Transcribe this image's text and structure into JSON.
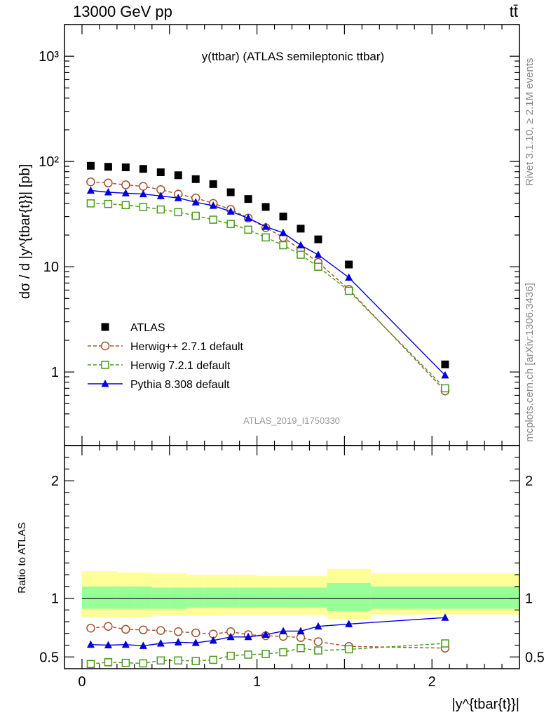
{
  "header": {
    "energy_label": "13000 GeV pp",
    "process_label": "tt̄"
  },
  "side_labels": {
    "rivet": "Rivet 3.1.10, ≥ 2.1M events",
    "mcplots": "mcplots.cern.ch [arXiv:1306.3436]"
  },
  "chart_data": [
    {
      "type": "scatter",
      "title": "y(ttbar) (ATLAS semileptonic ttbar)",
      "ylabel": "dσ / d |y^{tbar{t}}| [pb]",
      "xlabel": "",
      "yscale": "log",
      "ylim": [
        0.2,
        2000
      ],
      "xlim": [
        -0.1,
        2.5
      ],
      "y_tick_labels": [
        "1",
        "10",
        "10²",
        "10³"
      ],
      "watermark": "ATLAS_2019_I1750330",
      "legend_position": "lower-left",
      "x": [
        0.05,
        0.15,
        0.25,
        0.35,
        0.45,
        0.55,
        0.65,
        0.75,
        0.85,
        0.95,
        1.05,
        1.15,
        1.25,
        1.35,
        1.525,
        2.075
      ],
      "series": [
        {
          "name": "ATLAS",
          "style": "data",
          "color": "#000000",
          "marker": "square-filled",
          "values": [
            91,
            89,
            88,
            85,
            79,
            74,
            68,
            61,
            51,
            44,
            37,
            30,
            23,
            18.2,
            10.5,
            1.18
          ]
        },
        {
          "name": "Herwig++ 2.7.1 default",
          "style": "dashed",
          "color": "#a0522d",
          "marker": "circle-open",
          "values": [
            64,
            62.5,
            60,
            58,
            54,
            49,
            45,
            40,
            35,
            29,
            23.5,
            19,
            14.5,
            11,
            6.1,
            0.66
          ]
        },
        {
          "name": "Herwig 7.2.1 default",
          "style": "dashed",
          "color": "#4a9a1a",
          "marker": "square-open",
          "values": [
            40,
            39.5,
            38.5,
            37,
            35,
            33,
            30.5,
            28,
            25.5,
            22.5,
            19,
            16,
            13,
            10,
            5.9,
            0.7
          ]
        },
        {
          "name": "Pythia 8.308 default",
          "style": "solid",
          "color": "#0000dd",
          "marker": "triangle-filled",
          "values": [
            53,
            51,
            50,
            49,
            47,
            45,
            41,
            38,
            33.5,
            29,
            24,
            21,
            16,
            13,
            7.9,
            0.93
          ]
        }
      ]
    },
    {
      "type": "scatter",
      "ylabel": "Ratio to ATLAS",
      "xlabel": "|y^{tbar{t}}|",
      "ylim": [
        0.4,
        2.3
      ],
      "xlim": [
        -0.1,
        2.5
      ],
      "y_tick_labels": [
        "0.5",
        "1",
        "2"
      ],
      "x_tick_labels": [
        "0",
        "1",
        "2"
      ],
      "x": [
        0.05,
        0.15,
        0.25,
        0.35,
        0.45,
        0.55,
        0.65,
        0.75,
        0.85,
        0.95,
        1.05,
        1.15,
        1.25,
        1.35,
        1.525,
        2.075
      ],
      "bands": {
        "edges": [
          0,
          0.1,
          0.2,
          0.3,
          0.4,
          0.5,
          0.6,
          0.7,
          0.8,
          0.9,
          1.0,
          1.1,
          1.2,
          1.3,
          1.4,
          1.65,
          2.5
        ],
        "outer_color": "#ffff99",
        "inner_color": "#99ff99",
        "outer": [
          [
            0.84,
            1.23
          ],
          [
            0.84,
            1.23
          ],
          [
            0.84,
            1.22
          ],
          [
            0.84,
            1.22
          ],
          [
            0.85,
            1.21
          ],
          [
            0.85,
            1.21
          ],
          [
            0.85,
            1.2
          ],
          [
            0.85,
            1.2
          ],
          [
            0.86,
            1.2
          ],
          [
            0.86,
            1.2
          ],
          [
            0.86,
            1.19
          ],
          [
            0.86,
            1.19
          ],
          [
            0.86,
            1.19
          ],
          [
            0.86,
            1.19
          ],
          [
            0.82,
            1.25
          ],
          [
            0.86,
            1.21
          ]
        ],
        "inner": [
          [
            0.91,
            1.1
          ],
          [
            0.91,
            1.1
          ],
          [
            0.91,
            1.1
          ],
          [
            0.91,
            1.1
          ],
          [
            0.91,
            1.09
          ],
          [
            0.91,
            1.09
          ],
          [
            0.92,
            1.09
          ],
          [
            0.92,
            1.09
          ],
          [
            0.92,
            1.09
          ],
          [
            0.92,
            1.09
          ],
          [
            0.92,
            1.09
          ],
          [
            0.92,
            1.09
          ],
          [
            0.92,
            1.09
          ],
          [
            0.92,
            1.09
          ],
          [
            0.89,
            1.13
          ],
          [
            0.91,
            1.1
          ]
        ]
      },
      "series": [
        {
          "name": "Herwig++ 2.7.1 default",
          "style": "dashed",
          "color": "#a0522d",
          "marker": "circle-open",
          "values": [
            0.745,
            0.76,
            0.735,
            0.73,
            0.725,
            0.715,
            0.705,
            0.695,
            0.715,
            0.69,
            0.68,
            0.675,
            0.665,
            0.63,
            0.59,
            0.575
          ]
        },
        {
          "name": "Herwig 7.2.1 default",
          "style": "dashed",
          "color": "#4a9a1a",
          "marker": "square-open",
          "values": [
            0.44,
            0.455,
            0.45,
            0.445,
            0.47,
            0.47,
            0.465,
            0.475,
            0.51,
            0.52,
            0.525,
            0.54,
            0.575,
            0.555,
            0.565,
            0.615
          ]
        },
        {
          "name": "Pythia 8.308 default",
          "style": "solid",
          "color": "#0000dd",
          "marker": "triangle-filled",
          "values": [
            0.605,
            0.6,
            0.605,
            0.595,
            0.615,
            0.625,
            0.62,
            0.64,
            0.67,
            0.67,
            0.69,
            0.72,
            0.72,
            0.76,
            0.78,
            0.835
          ]
        }
      ]
    }
  ]
}
